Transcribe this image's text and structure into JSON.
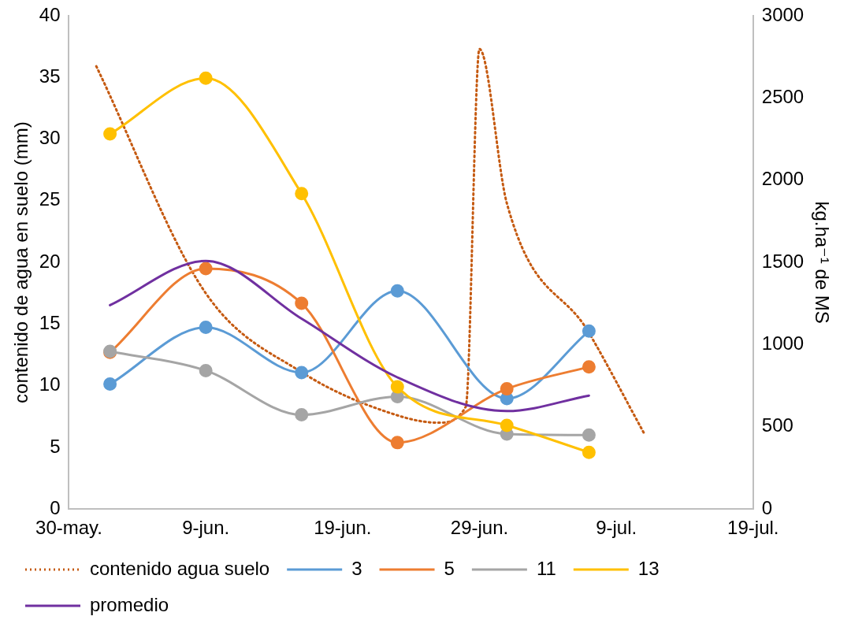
{
  "chart_data": {
    "type": "line",
    "ylabel": "contenido de agua en suelo (mm)",
    "y2label": "kg.ha⁻¹ de MS",
    "xlim": [
      "--05-30",
      "--07-19"
    ],
    "xticks": [
      {
        "value": "--05-30",
        "label": "30-may."
      },
      {
        "value": "--06-09",
        "label": "9-jun."
      },
      {
        "value": "--06-19",
        "label": "19-jun."
      },
      {
        "value": "--06-29",
        "label": "29-jun."
      },
      {
        "value": "--07-09",
        "label": "9-jul."
      },
      {
        "value": "--07-19",
        "label": "19-jul."
      }
    ],
    "ylim": [
      0,
      40
    ],
    "yticks": [
      0,
      5,
      10,
      15,
      20,
      25,
      30,
      35,
      40
    ],
    "y2lim": [
      0,
      3000
    ],
    "y2ticks": [
      0,
      500,
      1000,
      1500,
      2000,
      2500,
      3000
    ],
    "grid": false,
    "legend": "bottom",
    "series": [
      {
        "name": "contenido agua suelo",
        "color": "#c55a11",
        "line_style": "dotted",
        "marker": "none",
        "x": [
          "--06-01",
          "--06-09",
          "--06-16",
          "--06-23",
          "--06-26",
          "--06-28",
          "--06-29",
          "--07-01",
          "--07-07",
          "--07-11"
        ],
        "values": [
          35.9,
          17.5,
          11.1,
          7.6,
          7.0,
          8.3,
          37.3,
          24.8,
          14.3,
          6.2
        ]
      },
      {
        "name": "3",
        "color": "#5b9bd5",
        "axis": "y2",
        "marker": "circle",
        "x": [
          "--06-02",
          "--06-09",
          "--06-16",
          "--06-23",
          "--07-01",
          "--07-07"
        ],
        "values": [
          760,
          1105,
          830,
          1327,
          672,
          1082
        ]
      },
      {
        "name": "5",
        "color": "#ed7d31",
        "axis": "y2",
        "marker": "circle",
        "x": [
          "--06-02",
          "--06-09",
          "--06-16",
          "--06-23",
          "--07-01",
          "--07-07"
        ],
        "values": [
          953,
          1462,
          1251,
          404,
          731,
          865
        ]
      },
      {
        "name": "11",
        "color": "#a5a5a5",
        "axis": "y2",
        "marker": "circle",
        "x": [
          "--06-02",
          "--06-09",
          "--06-16",
          "--06-23",
          "--07-01",
          "--07-07"
        ],
        "values": [
          959,
          842,
          573,
          684,
          456,
          450
        ]
      },
      {
        "name": "13",
        "color": "#ffc000",
        "axis": "y2",
        "marker": "circle",
        "x": [
          "--06-02",
          "--06-09",
          "--06-16",
          "--06-23",
          "--07-01",
          "--07-07"
        ],
        "values": [
          2281,
          2620,
          1918,
          743,
          509,
          345
        ]
      },
      {
        "name": "promedio",
        "color": "#7030a0",
        "axis": "y2",
        "marker": "none",
        "x": [
          "--06-02",
          "--06-09",
          "--06-16",
          "--06-23",
          "--07-01",
          "--07-07"
        ],
        "values": [
          1240,
          1509,
          1158,
          801,
          596,
          690
        ]
      }
    ]
  }
}
